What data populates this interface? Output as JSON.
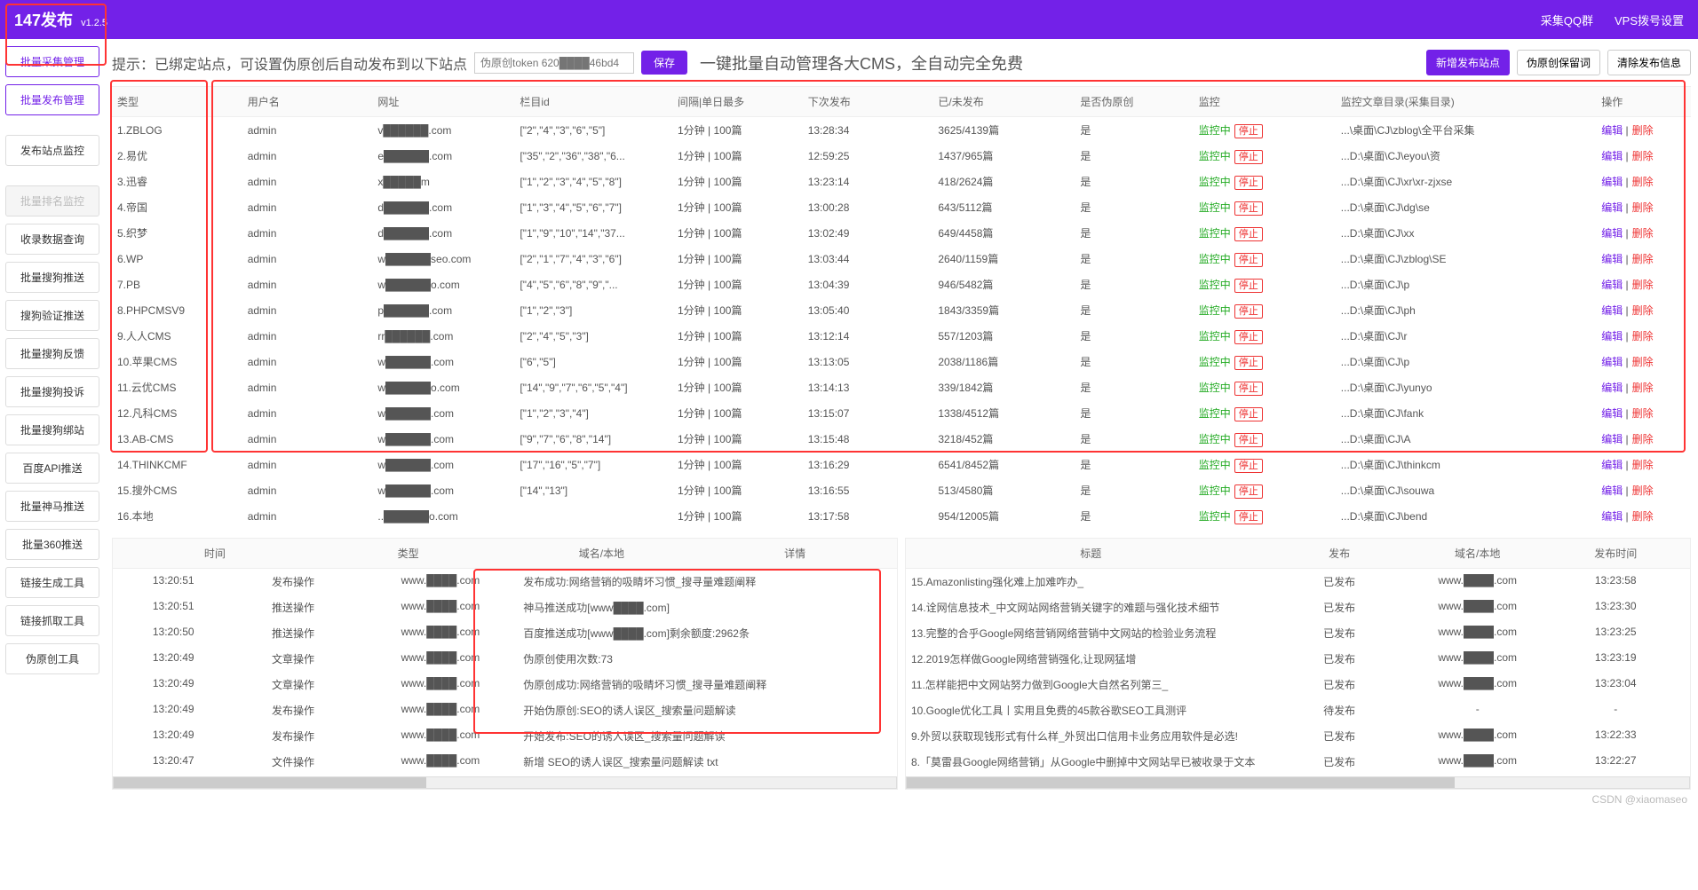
{
  "brand": {
    "name": "147发布",
    "version": "v1.2.5"
  },
  "topLinks": [
    "采集QQ群",
    "VPS拨号设置"
  ],
  "sidebar": [
    {
      "label": "批量采集管理",
      "state": "active"
    },
    {
      "label": "批量发布管理",
      "state": "active"
    },
    {
      "label": "发布站点监控",
      "state": ""
    },
    {
      "label": "批量排名监控",
      "state": "disabled"
    },
    {
      "label": "收录数据查询",
      "state": ""
    },
    {
      "label": "批量搜狗推送",
      "state": ""
    },
    {
      "label": "搜狗验证推送",
      "state": ""
    },
    {
      "label": "批量搜狗反馈",
      "state": ""
    },
    {
      "label": "批量搜狗投诉",
      "state": ""
    },
    {
      "label": "批量搜狗绑站",
      "state": ""
    },
    {
      "label": "百度API推送",
      "state": ""
    },
    {
      "label": "批量神马推送",
      "state": ""
    },
    {
      "label": "批量360推送",
      "state": ""
    },
    {
      "label": "链接生成工具",
      "state": ""
    },
    {
      "label": "链接抓取工具",
      "state": ""
    },
    {
      "label": "伪原创工具",
      "state": ""
    }
  ],
  "tip": "提示：已绑定站点，可设置伪原创后自动发布到以下站点",
  "tokenPlaceholder": "伪原创token 620████46bd4",
  "saveLabel": "保存",
  "slogan": "一键批量自动管理各大CMS，全自动完全免费",
  "rightButtons": {
    "add": "新增发布站点",
    "reserve": "伪原创保留词",
    "clear": "清除发布信息"
  },
  "headers": [
    "类型",
    "用户名",
    "网址",
    "栏目id",
    "间隔|单日最多",
    "下次发布",
    "已/未发布",
    "是否伪原创",
    "监控",
    "监控文章目录(采集目录)",
    "操作"
  ],
  "monitorLabel": "监控中",
  "stopLabel": "停止",
  "yesLabel": "是",
  "editLabel": "编辑",
  "delLabel": "删除",
  "rows": [
    {
      "type": "1.ZBLOG",
      "user": "admin",
      "url": "v██████.com",
      "cols": "[\"2\",\"4\",\"3\",\"6\",\"5\"]",
      "freq": "1分钟 | 100篇",
      "next": "13:28:34",
      "pub": "3625/4139篇",
      "dir": "...\\桌面\\CJ\\zblog\\全平台采集"
    },
    {
      "type": "2.易优",
      "user": "admin",
      "url": "e██████.com",
      "cols": "[\"35\",\"2\",\"36\",\"38\",\"6...",
      "freq": "1分钟 | 100篇",
      "next": "12:59:25",
      "pub": "1437/965篇",
      "dir": "...D:\\桌面\\CJ\\eyou\\资"
    },
    {
      "type": "3.迅睿",
      "user": "admin",
      "url": "x█████m",
      "cols": "[\"1\",\"2\",\"3\",\"4\",\"5\",\"8\"]",
      "freq": "1分钟 | 100篇",
      "next": "13:23:14",
      "pub": "418/2624篇",
      "dir": "...D:\\桌面\\CJ\\xr\\xr-zjxse"
    },
    {
      "type": "4.帝国",
      "user": "admin",
      "url": "d██████.com",
      "cols": "[\"1\",\"3\",\"4\",\"5\",\"6\",\"7\"]",
      "freq": "1分钟 | 100篇",
      "next": "13:00:28",
      "pub": "643/5112篇",
      "dir": "...D:\\桌面\\CJ\\dg\\se"
    },
    {
      "type": "5.织梦",
      "user": "admin",
      "url": "d██████.com",
      "cols": "[\"1\",\"9\",\"10\",\"14\",\"37...",
      "freq": "1分钟 | 100篇",
      "next": "13:02:49",
      "pub": "649/4458篇",
      "dir": "...D:\\桌面\\CJ\\xx"
    },
    {
      "type": "6.WP",
      "user": "admin",
      "url": "w██████seo.com",
      "cols": "[\"2\",\"1\",\"7\",\"4\",\"3\",\"6\"]",
      "freq": "1分钟 | 100篇",
      "next": "13:03:44",
      "pub": "2640/1159篇",
      "dir": "...D:\\桌面\\CJ\\zblog\\SE"
    },
    {
      "type": "7.PB",
      "user": "admin",
      "url": "w██████o.com",
      "cols": "[\"4\",\"5\",\"6\",\"8\",\"9\",\"...",
      "freq": "1分钟 | 100篇",
      "next": "13:04:39",
      "pub": "946/5482篇",
      "dir": "...D:\\桌面\\CJ\\p"
    },
    {
      "type": "8.PHPCMSV9",
      "user": "admin",
      "url": "p██████.com",
      "cols": "[\"1\",\"2\",\"3\"]",
      "freq": "1分钟 | 100篇",
      "next": "13:05:40",
      "pub": "1843/3359篇",
      "dir": "...D:\\桌面\\CJ\\ph"
    },
    {
      "type": "9.人人CMS",
      "user": "admin",
      "url": "rr██████.com",
      "cols": "[\"2\",\"4\",\"5\",\"3\"]",
      "freq": "1分钟 | 100篇",
      "next": "13:12:14",
      "pub": "557/1203篇",
      "dir": "...D:\\桌面\\CJ\\r"
    },
    {
      "type": "10.苹果CMS",
      "user": "admin",
      "url": "w██████.com",
      "cols": "[\"6\",\"5\"]",
      "freq": "1分钟 | 100篇",
      "next": "13:13:05",
      "pub": "2038/1186篇",
      "dir": "...D:\\桌面\\CJ\\p"
    },
    {
      "type": "11.云优CMS",
      "user": "admin",
      "url": "w██████o.com",
      "cols": "[\"14\",\"9\",\"7\",\"6\",\"5\",\"4\"]",
      "freq": "1分钟 | 100篇",
      "next": "13:14:13",
      "pub": "339/1842篇",
      "dir": "...D:\\桌面\\CJ\\yunyo"
    },
    {
      "type": "12.凡科CMS",
      "user": "admin",
      "url": "w██████.com",
      "cols": "[\"1\",\"2\",\"3\",\"4\"]",
      "freq": "1分钟 | 100篇",
      "next": "13:15:07",
      "pub": "1338/4512篇",
      "dir": "...D:\\桌面\\CJ\\fank"
    },
    {
      "type": "13.AB-CMS",
      "user": "admin",
      "url": "w██████.com",
      "cols": "[\"9\",\"7\",\"6\",\"8\",\"14\"]",
      "freq": "1分钟 | 100篇",
      "next": "13:15:48",
      "pub": "3218/452篇",
      "dir": "...D:\\桌面\\CJ\\A"
    },
    {
      "type": "14.THINKCMF",
      "user": "admin",
      "url": "w██████.com",
      "cols": "[\"17\",\"16\",\"5\",\"7\"]",
      "freq": "1分钟 | 100篇",
      "next": "13:16:29",
      "pub": "6541/8452篇",
      "dir": "...D:\\桌面\\CJ\\thinkcm"
    },
    {
      "type": "15.搜外CMS",
      "user": "admin",
      "url": "w██████.com",
      "cols": "[\"14\",\"13\"]",
      "freq": "1分钟 | 100篇",
      "next": "13:16:55",
      "pub": "513/4580篇",
      "dir": "...D:\\桌面\\CJ\\souwa"
    },
    {
      "type": "16.本地",
      "user": "admin",
      "url": "..██████o.com",
      "cols": "",
      "freq": "1分钟 | 100篇",
      "next": "13:17:58",
      "pub": "954/12005篇",
      "dir": "...D:\\桌面\\CJ\\bend"
    }
  ],
  "logHeaders": [
    "时间",
    "类型",
    "域名/本地",
    "详情"
  ],
  "logs": [
    {
      "t": "13:20:51",
      "type": "发布操作",
      "dom": "www.████.com",
      "detail": "发布成功:网络营销的吸睛坏习惯_搜寻量难题阐释"
    },
    {
      "t": "13:20:51",
      "type": "推送操作",
      "dom": "www.████.com",
      "detail": "神马推送成功[www████.com]"
    },
    {
      "t": "13:20:50",
      "type": "推送操作",
      "dom": "www.████.com",
      "detail": "百度推送成功[www████.com]剩余额度:2962条"
    },
    {
      "t": "13:20:49",
      "type": "文章操作",
      "dom": "www.████.com",
      "detail": "伪原创使用次数:73"
    },
    {
      "t": "13:20:49",
      "type": "文章操作",
      "dom": "www.████.com",
      "detail": "伪原创成功:网络营销的吸睛坏习惯_搜寻量难题阐释"
    },
    {
      "t": "13:20:49",
      "type": "发布操作",
      "dom": "www.████.com",
      "detail": "开始伪原创:SEO的诱人误区_搜索量问题解读"
    },
    {
      "t": "13:20:49",
      "type": "发布操作",
      "dom": "www.████.com",
      "detail": "开始发布:SEO的诱人误区_搜索量问题解读"
    },
    {
      "t": "13:20:47",
      "type": "文件操作",
      "dom": "www.████.com",
      "detail": "新增 SEO的诱人误区_搜索量问题解读 txt"
    }
  ],
  "pubHeaders": [
    "标题",
    "发布",
    "域名/本地",
    "发布时间"
  ],
  "pubs": [
    {
      "title": "15.Amazonlisting强化难上加难咋办_",
      "status": "已发布",
      "dom": "www.████.com",
      "time": "13:23:58"
    },
    {
      "title": "14.诠网信息技术_中文网站网络营销关键字的难题与强化技术细节",
      "status": "已发布",
      "dom": "www.████.com",
      "time": "13:23:30"
    },
    {
      "title": "13.完整的合乎Google网络营销网络营销中文网站的检验业务流程",
      "status": "已发布",
      "dom": "www.████.com",
      "time": "13:23:25"
    },
    {
      "title": "12.2019怎样做Google网络营销强化,让现网猛增",
      "status": "已发布",
      "dom": "www.████.com",
      "time": "13:23:19"
    },
    {
      "title": "11.怎样能把中文网站努力做到Google大自然名列第三_",
      "status": "已发布",
      "dom": "www.████.com",
      "time": "13:23:04"
    },
    {
      "title": "10.Google优化工具丨实用且免费的45款谷歌SEO工具测评",
      "status": "待发布",
      "dom": "-",
      "time": "-"
    },
    {
      "title": "9.外贸以获取现钱形式有什么样_外贸出口信用卡业务应用软件是必选!",
      "status": "已发布",
      "dom": "www.████.com",
      "time": "13:22:33"
    },
    {
      "title": "8.「莫雷县Google网络营销」从Google中删掉中文网站早已被收录于文本",
      "status": "已发布",
      "dom": "www.████.com",
      "time": "13:22:27"
    }
  ],
  "watermark": "CSDN @xiaomaseo"
}
